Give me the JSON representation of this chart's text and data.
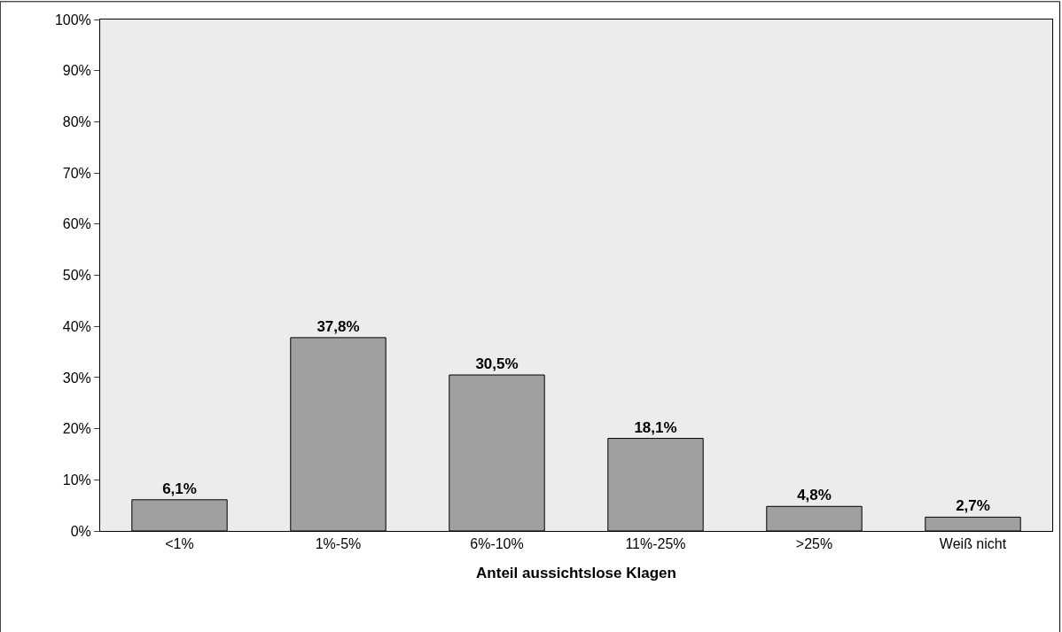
{
  "chart_data": {
    "type": "bar",
    "xlabel": "Anteil aussichtslose Klagen",
    "categories": [
      "<1%",
      "1%-5%",
      "6%-10%",
      "11%-25%",
      ">25%",
      "Weiß nicht"
    ],
    "values": [
      6.1,
      37.8,
      30.5,
      18.1,
      4.8,
      2.7
    ],
    "value_labels": [
      "6,1%",
      "37,8%",
      "30,5%",
      "18,1%",
      "4,8%",
      "2,7%"
    ],
    "color": "#a0a0a0",
    "ylim": [
      0,
      100
    ],
    "yticks": [
      {
        "value": 0,
        "label": "0%"
      },
      {
        "value": 10,
        "label": "10%"
      },
      {
        "value": 20,
        "label": "20%"
      },
      {
        "value": 30,
        "label": "30%"
      },
      {
        "value": 40,
        "label": "40%"
      },
      {
        "value": 50,
        "label": "50%"
      },
      {
        "value": 60,
        "label": "60%"
      },
      {
        "value": 70,
        "label": "70%"
      },
      {
        "value": 80,
        "label": "80%"
      },
      {
        "value": 90,
        "label": "90%"
      },
      {
        "value": 100,
        "label": "100%"
      }
    ],
    "grid": false,
    "legend": false
  }
}
